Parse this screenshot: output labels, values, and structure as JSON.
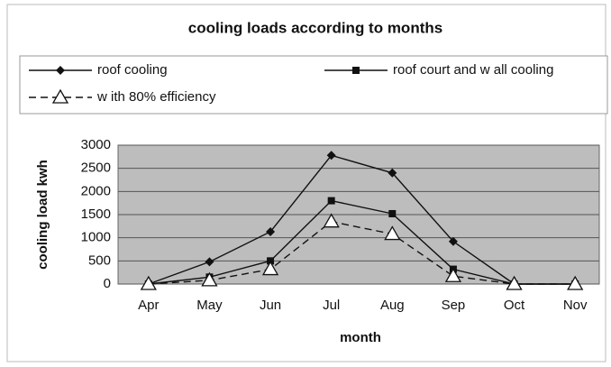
{
  "chart_data": {
    "type": "line",
    "title": "cooling loads according to months",
    "xlabel": "month",
    "ylabel": "cooling load kwh",
    "categories": [
      "Apr",
      "May",
      "Jun",
      "Jul",
      "Aug",
      "Sep",
      "Oct",
      "Nov"
    ],
    "series": [
      {
        "name": "roof cooling",
        "color": "#111111",
        "marker": "diamond",
        "dashed": false,
        "values": [
          0,
          480,
          1130,
          2780,
          2400,
          920,
          0,
          0
        ]
      },
      {
        "name": "roof court and w all cooling",
        "color": "#111111",
        "marker": "square",
        "dashed": false,
        "values": [
          0,
          150,
          500,
          1800,
          1520,
          320,
          0,
          0
        ]
      },
      {
        "name": "w ith 80% efficiency",
        "color": "#111111",
        "marker": "triangle",
        "dashed": true,
        "values": [
          0,
          80,
          320,
          1350,
          1080,
          170,
          0,
          0
        ]
      }
    ],
    "ylim": [
      0,
      3000
    ],
    "yticks": [
      0,
      500,
      1000,
      1500,
      2000,
      2500,
      3000
    ],
    "grid": true
  }
}
